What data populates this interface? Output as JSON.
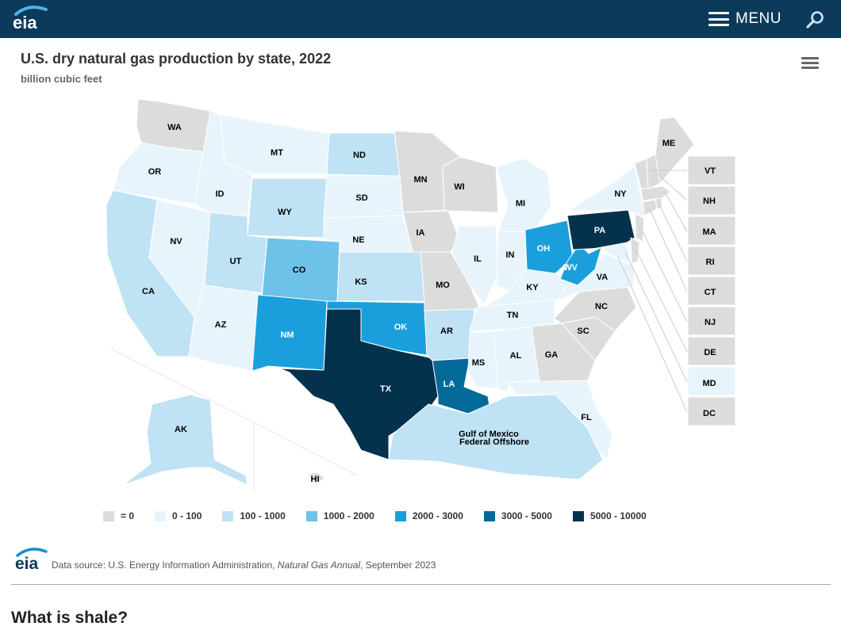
{
  "header": {
    "logo_text": "eia",
    "menu_label": "MENU"
  },
  "chart_title": "U.S. dry natural gas production by state, 2022",
  "chart_subtitle": "billion cubic feet",
  "colors": {
    "zero": "#dcdcdc",
    "r1": "#e8f4fb",
    "r2": "#bfe2f4",
    "r3": "#6ec1e8",
    "r4": "#1a9fdc",
    "r5": "#046a9a",
    "r6": "#04324d",
    "header": "#0b3a5a"
  },
  "legend": [
    {
      "label": "= 0",
      "color": "#dcdcdc"
    },
    {
      "label": "0 - 100",
      "color": "#e8f4fb"
    },
    {
      "label": "100 - 1000",
      "color": "#bfe2f4"
    },
    {
      "label": "1000 - 2000",
      "color": "#6ec1e8"
    },
    {
      "label": "2000 - 3000",
      "color": "#1a9fdc"
    },
    {
      "label": "3000 - 5000",
      "color": "#046a9a"
    },
    {
      "label": "5000 - 10000",
      "color": "#04324d"
    }
  ],
  "chart_data": {
    "type": "choropleth",
    "title": "U.S. dry natural gas production by state, 2022",
    "subtitle": "billion cubic feet",
    "bins": [
      "= 0",
      "0 - 100",
      "100 - 1000",
      "1000 - 2000",
      "2000 - 3000",
      "3000 - 5000",
      "5000 - 10000"
    ],
    "states": {
      "WA": "= 0",
      "OR": "0 - 100",
      "CA": "100 - 1000",
      "NV": "0 - 100",
      "ID": "0 - 100",
      "MT": "0 - 100",
      "WY": "100 - 1000",
      "UT": "100 - 1000",
      "AZ": "0 - 100",
      "CO": "1000 - 2000",
      "NM": "2000 - 3000",
      "ND": "100 - 1000",
      "SD": "0 - 100",
      "NE": "0 - 100",
      "KS": "100 - 1000",
      "OK": "2000 - 3000",
      "TX": "5000 - 10000",
      "MN": "= 0",
      "IA": "= 0",
      "MO": "= 0",
      "AR": "100 - 1000",
      "LA": "3000 - 5000",
      "WI": "= 0",
      "IL": "0 - 100",
      "MS": "0 - 100",
      "MI": "0 - 100",
      "IN": "0 - 100",
      "KY": "0 - 100",
      "TN": "0 - 100",
      "AL": "0 - 100",
      "OH": "2000 - 3000",
      "WV": "2000 - 3000",
      "PA": "5000 - 10000",
      "VA": "0 - 100",
      "NC": "= 0",
      "SC": "= 0",
      "GA": "= 0",
      "FL": "0 - 100",
      "NY": "0 - 100",
      "ME": "= 0",
      "AK": "100 - 1000",
      "HI": "= 0",
      "VT": "= 0",
      "NH": "= 0",
      "MA": "= 0",
      "RI": "= 0",
      "CT": "= 0",
      "NJ": "= 0",
      "DE": "= 0",
      "MD": "0 - 100",
      "DC": "= 0",
      "Gulf of Mexico Federal Offshore": "100 - 1000"
    }
  },
  "map_labels": {
    "WA": "WA",
    "OR": "OR",
    "CA": "CA",
    "NV": "NV",
    "ID": "ID",
    "MT": "MT",
    "WY": "WY",
    "UT": "UT",
    "AZ": "AZ",
    "CO": "CO",
    "NM": "NM",
    "ND": "ND",
    "SD": "SD",
    "NE": "NE",
    "KS": "KS",
    "OK": "OK",
    "TX": "TX",
    "MN": "MN",
    "IA": "IA",
    "MO": "MO",
    "AR": "AR",
    "LA": "LA",
    "WI": "WI",
    "IL": "IL",
    "MS": "MS",
    "MI": "MI",
    "IN": "IN",
    "KY": "KY",
    "TN": "TN",
    "AL": "AL",
    "OH": "OH",
    "WV": "WV",
    "PA": "PA",
    "VA": "VA",
    "NC": "NC",
    "SC": "SC",
    "GA": "GA",
    "FL": "FL",
    "NY": "NY",
    "ME": "ME",
    "AK": "AK",
    "HI": "HI",
    "gulf_line1": "Gulf of Mexico",
    "gulf_line2": "Federal Offshore",
    "VT": "VT",
    "NH": "NH",
    "MA": "MA",
    "RI": "RI",
    "CT": "CT",
    "NJ": "NJ",
    "DE": "DE",
    "MD": "MD",
    "DC": "DC"
  },
  "source": {
    "prefix": "Data source: U.S. Energy Information Administration, ",
    "publication": "Natural Gas Annual",
    "suffix": ", September 2023"
  },
  "section_heading": "What is shale?"
}
